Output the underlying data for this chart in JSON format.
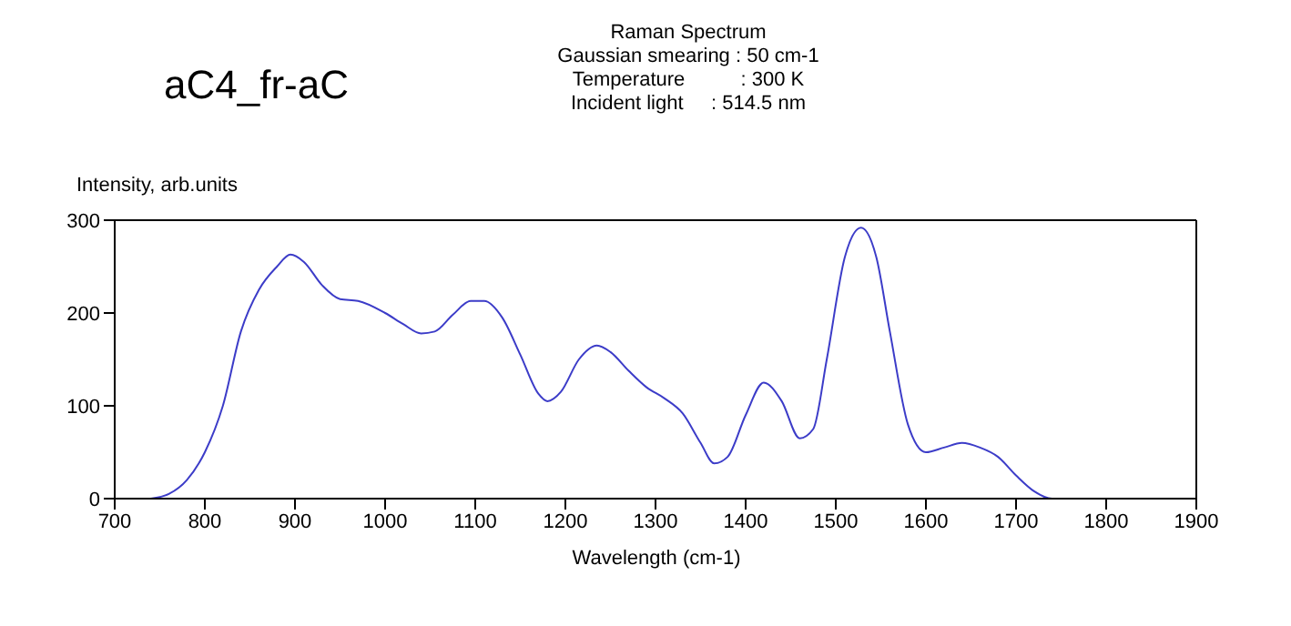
{
  "chart_data": {
    "type": "line",
    "title": "aC4_fr-aC",
    "subtitle": "Raman Spectrum",
    "annotations": [
      "Gaussian smearing : 50 cm-1",
      "Temperature          : 300 K",
      "Incident light     : 514.5 nm"
    ],
    "xlabel": "Wavelength (cm-1)",
    "ylabel": "Intensity, arb.units",
    "xlim": [
      700,
      1900
    ],
    "xticks": [
      700,
      800,
      900,
      1000,
      1100,
      1200,
      1300,
      1400,
      1500,
      1600,
      1700,
      1800,
      1900
    ],
    "ylim": [
      0,
      300
    ],
    "yticks": [
      0,
      100,
      200,
      300
    ],
    "grid": false,
    "legend": false,
    "marker": "none",
    "line_style": "solid",
    "x": [
      740,
      760,
      780,
      800,
      820,
      840,
      860,
      880,
      895,
      910,
      930,
      950,
      970,
      1000,
      1020,
      1040,
      1055,
      1075,
      1095,
      1110,
      1130,
      1150,
      1170,
      1180,
      1195,
      1215,
      1235,
      1250,
      1270,
      1290,
      1310,
      1330,
      1350,
      1365,
      1380,
      1400,
      1420,
      1440,
      1460,
      1475,
      1490,
      1510,
      1528,
      1545,
      1560,
      1580,
      1600,
      1620,
      1640,
      1660,
      1680,
      1700,
      1720,
      1740,
      1750,
      1800
    ],
    "series": [
      {
        "color": "#3c3cc8",
        "values": [
          0,
          5,
          20,
          50,
          100,
          180,
          225,
          250,
          263,
          255,
          230,
          215,
          213,
          200,
          188,
          178,
          180,
          198,
          213,
          213,
          195,
          155,
          113,
          105,
          115,
          150,
          165,
          158,
          138,
          120,
          108,
          92,
          60,
          38,
          45,
          90,
          125,
          105,
          65,
          75,
          150,
          260,
          292,
          260,
          180,
          80,
          50,
          55,
          60,
          55,
          45,
          25,
          8,
          0,
          0,
          0
        ]
      }
    ]
  }
}
